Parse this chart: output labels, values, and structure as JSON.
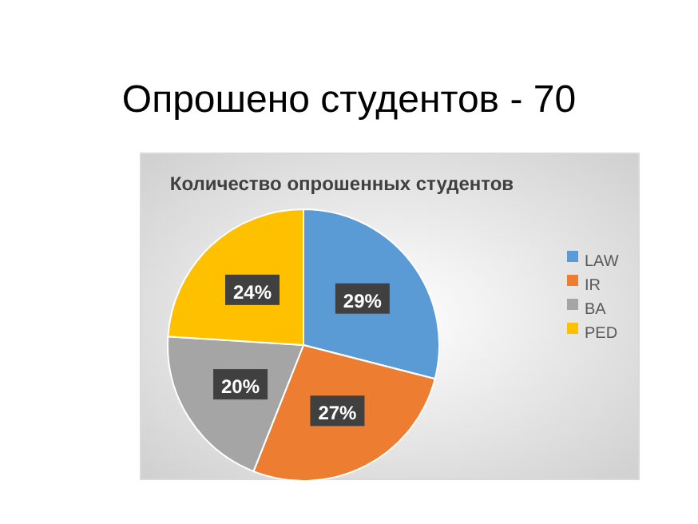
{
  "chart_data": {
    "type": "pie",
    "title": "Опрошено студентов - 70",
    "subtitle": "Количество опрошенных студентов",
    "categories": [
      "LAW",
      "IR",
      "BA",
      "PED"
    ],
    "values": [
      29,
      27,
      20,
      24
    ],
    "colors": [
      "#5b9bd5",
      "#ed7d31",
      "#a5a5a5",
      "#ffc000"
    ],
    "value_labels": [
      "29%",
      "27%",
      "20%",
      "24%"
    ],
    "legend": "right"
  }
}
